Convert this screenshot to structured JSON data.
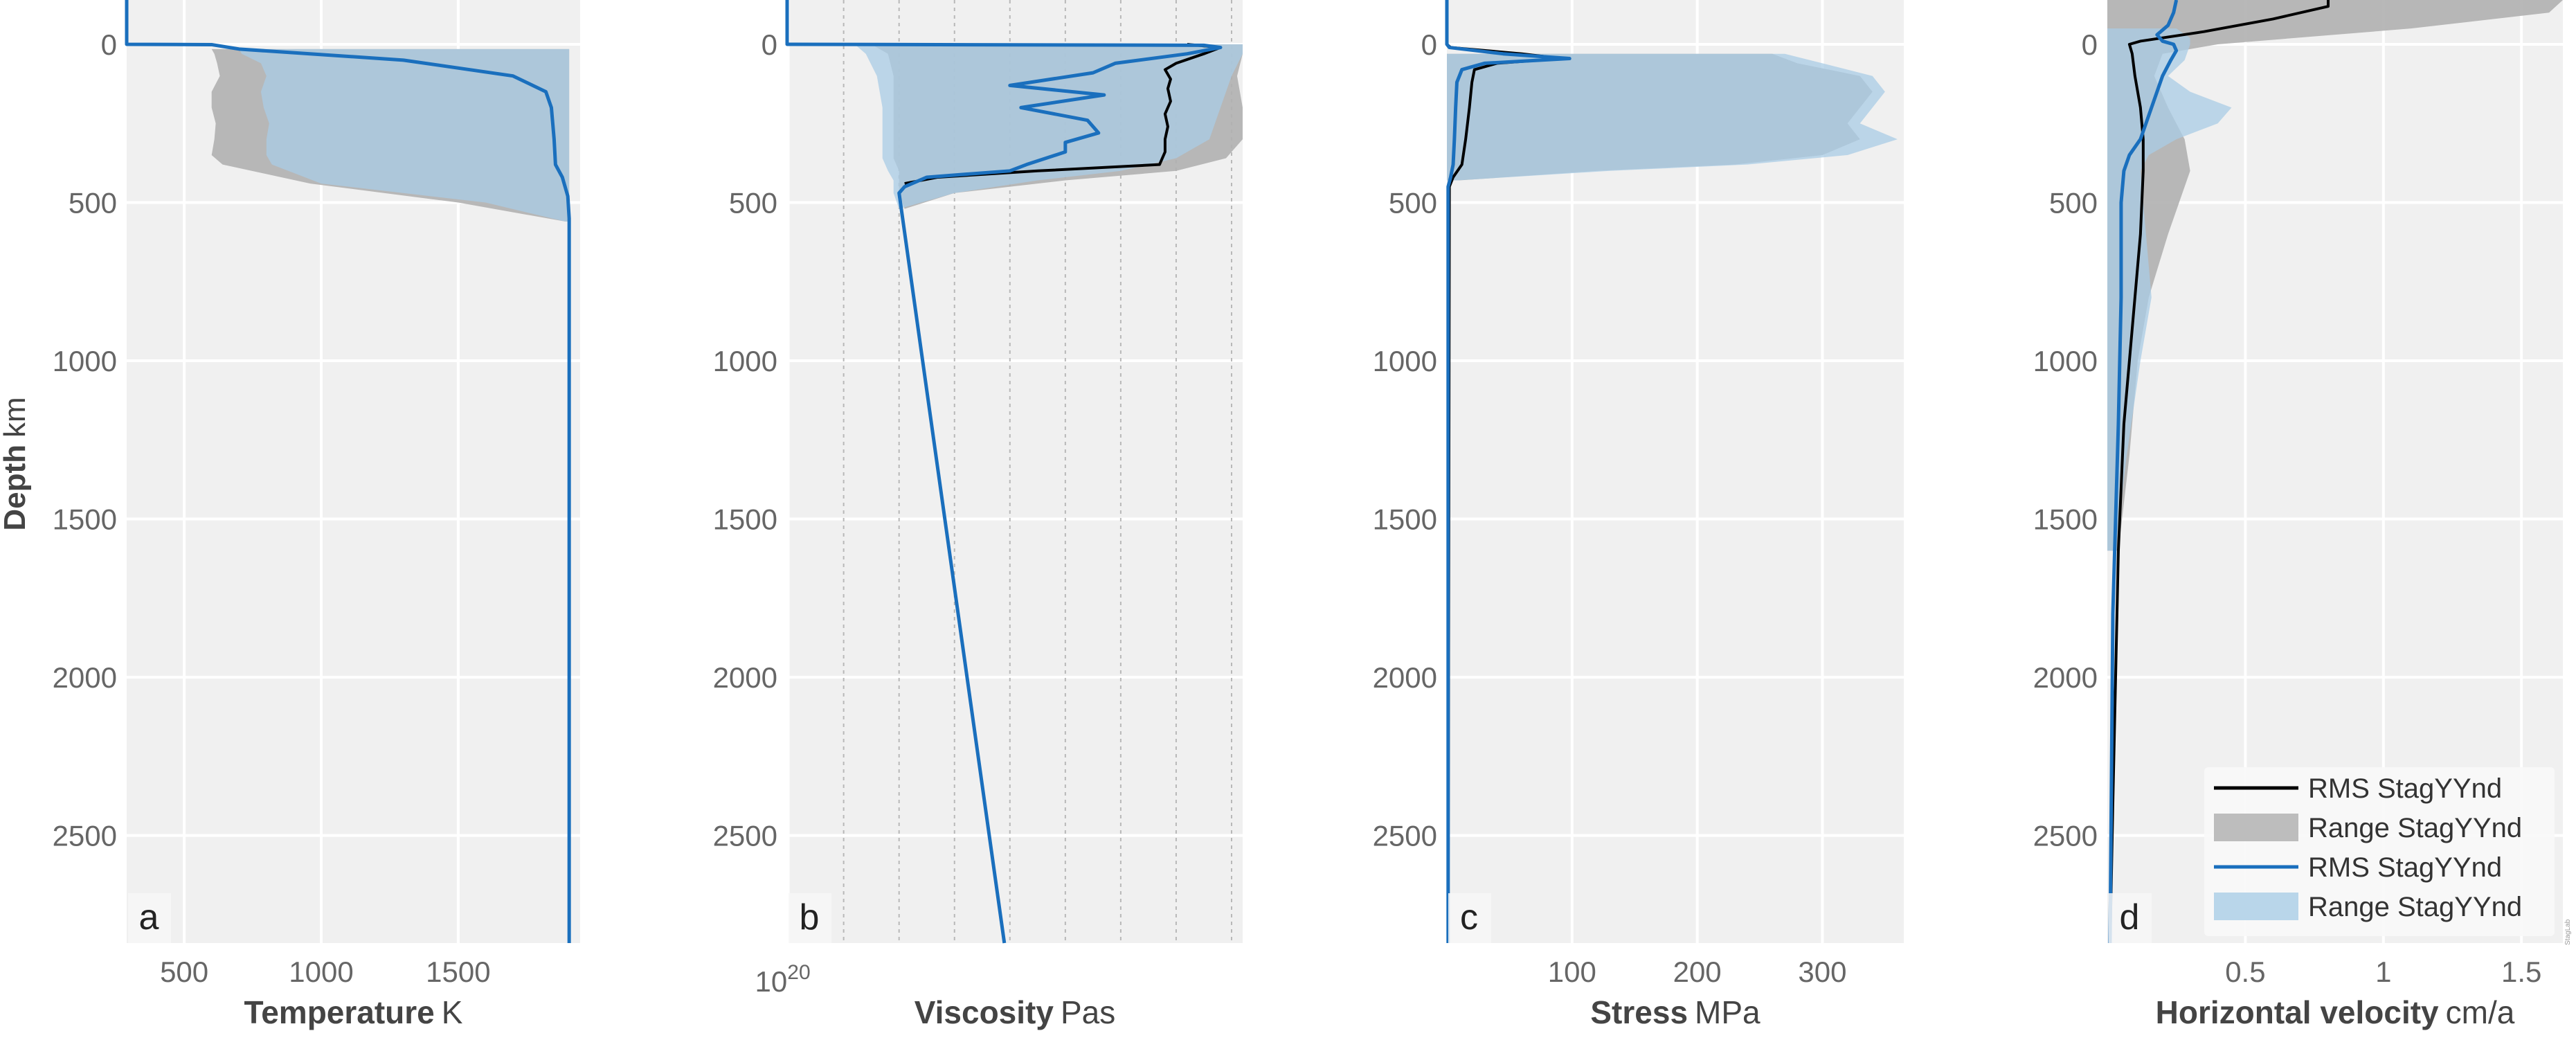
{
  "figure": {
    "ylabel_bold": "Depth",
    "ylabel_unit": "km",
    "credit": "StagLab"
  },
  "legend": {
    "placement": "lower-right of panel d",
    "entries": [
      {
        "label": "RMS StagYYnd",
        "kind": "line",
        "color": "#000000"
      },
      {
        "label": "Range StagYYnd",
        "kind": "band",
        "color": "#bdbdbd"
      },
      {
        "label": "RMS StagYYnd",
        "kind": "line",
        "color": "#1a6fbd"
      },
      {
        "label": "Range StagYYnd",
        "kind": "band",
        "color": "#b9d6ea"
      }
    ]
  },
  "colors": {
    "panel_bg": "#f0f0f0",
    "grid": "#ffffff",
    "series_a": "#000000",
    "series_b": "#1a6fbd",
    "band_a": "#b0b0b0",
    "band_b": "#a9cce6",
    "overlap": "#9fb6c6"
  },
  "chart_data": [
    {
      "panel": "a",
      "type": "line",
      "xlabel_bold": "Temperature",
      "xlabel_unit": "K",
      "xscale": "linear",
      "xlim": [
        290,
        1945
      ],
      "xticks": [
        500,
        1000,
        1500
      ],
      "ylim": [
        2840,
        -140
      ],
      "yticks": [
        0,
        500,
        1000,
        1500,
        2000,
        2500
      ],
      "grid": true,
      "series": [
        {
          "name": "RMS StagYYnd",
          "color": "#000000",
          "depth": [
            -140,
            0,
            1,
            15,
            50,
            100,
            150,
            200,
            300,
            380,
            420,
            480,
            550,
            2840
          ],
          "x": [
            290,
            290,
            600,
            700,
            1300,
            1700,
            1820,
            1840,
            1850,
            1855,
            1880,
            1900,
            1905,
            1905
          ]
        },
        {
          "name": "RMS StagYYnd",
          "color": "#1a6fbd",
          "depth": [
            -140,
            0,
            1,
            15,
            50,
            100,
            150,
            200,
            300,
            380,
            420,
            480,
            550,
            2840
          ],
          "x": [
            290,
            290,
            600,
            700,
            1300,
            1700,
            1820,
            1840,
            1850,
            1855,
            1880,
            1900,
            1905,
            1905
          ]
        }
      ],
      "bands": [
        {
          "name": "Range StagYYnd",
          "color": "#b0b0b0",
          "depth": [
            15,
            30,
            60,
            100,
            150,
            200,
            250,
            300,
            350,
            380,
            440,
            500,
            560
          ],
          "lo": [
            600,
            610,
            620,
            630,
            600,
            600,
            615,
            610,
            600,
            640,
            960,
            1500,
            1890
          ],
          "hi": [
            1905,
            1905,
            1905,
            1905,
            1905,
            1905,
            1905,
            1905,
            1905,
            1905,
            1905,
            1905,
            1905
          ]
        },
        {
          "name": "Range StagYYnd",
          "color": "#a9cce6",
          "depth": [
            15,
            30,
            60,
            100,
            150,
            200,
            250,
            300,
            350,
            380,
            440,
            500,
            560
          ],
          "lo": [
            700,
            710,
            780,
            800,
            780,
            790,
            810,
            800,
            800,
            820,
            1000,
            1600,
            1890
          ],
          "hi": [
            1905,
            1905,
            1905,
            1905,
            1905,
            1905,
            1905,
            1905,
            1905,
            1905,
            1905,
            1905,
            1905
          ]
        }
      ]
    },
    {
      "panel": "b",
      "type": "line",
      "xlabel_bold": "Viscosity",
      "xlabel_unit": "Pas",
      "xscale": "log",
      "xlim": [
        19.98,
        28.2
      ],
      "xticks": [
        20
      ],
      "xtick_labels": [
        "10",
        "20"
      ],
      "minor_gridlines_log": [
        21,
        22,
        23,
        24,
        25,
        26,
        27,
        28
      ],
      "ylim": [
        2840,
        -140
      ],
      "yticks": [
        0,
        500,
        1000,
        1500,
        2000,
        2500
      ],
      "grid": true,
      "series": [
        {
          "name": "RMS StagYYnd",
          "color": "#000000",
          "depth": [
            0,
            10,
            30,
            60,
            80,
            110,
            140,
            180,
            220,
            260,
            300,
            340,
            380,
            400,
            420,
            440
          ],
          "log10_x": [
            27.2,
            27.8,
            27.5,
            27.0,
            26.8,
            26.9,
            26.85,
            26.9,
            26.8,
            26.85,
            26.8,
            26.8,
            26.7,
            24.5,
            22.7,
            22.1
          ]
        },
        {
          "name": "RMS StagYYnd",
          "color": "#1a6fbd",
          "depth": [
            -140,
            0,
            3,
            10,
            30,
            60,
            90,
            130,
            160,
            200,
            240,
            280,
            310,
            340,
            380,
            400,
            420,
            450,
            470,
            2840
          ],
          "log10_x": [
            19.98,
            19.98,
            27.5,
            27.8,
            27.2,
            25.9,
            25.5,
            24.0,
            25.7,
            24.2,
            25.4,
            25.6,
            25.0,
            25.0,
            24.3,
            24.0,
            22.5,
            22.1,
            22.0,
            23.9
          ]
        }
      ],
      "bands": [
        {
          "name": "Range StagYYnd",
          "color": "#b0b0b0",
          "depth": [
            0,
            30,
            100,
            200,
            300,
            360,
            400,
            430,
            470,
            520
          ],
          "lo": [
            21.5,
            21.8,
            21.9,
            21.9,
            21.9,
            21.9,
            22.0,
            22.0,
            22.0,
            22.1
          ],
          "hi": [
            28.2,
            28.2,
            28.1,
            28.2,
            28.2,
            27.9,
            27.0,
            25.0,
            23.0,
            22.1
          ]
        },
        {
          "name": "Range StagYYnd",
          "color": "#a9cce6",
          "depth": [
            0,
            30,
            100,
            200,
            300,
            360,
            400,
            430,
            470,
            520
          ],
          "lo": [
            21.2,
            21.4,
            21.6,
            21.7,
            21.7,
            21.7,
            21.8,
            21.9,
            21.9,
            22.0
          ],
          "hi": [
            28.2,
            28.2,
            28.0,
            27.8,
            27.6,
            27.0,
            26.0,
            24.5,
            23.0,
            22.0
          ]
        }
      ]
    },
    {
      "panel": "c",
      "type": "line",
      "xlabel_bold": "Stress",
      "xlabel_unit": "MPa",
      "xscale": "linear",
      "xlim": [
        0,
        365
      ],
      "xticks": [
        100,
        200,
        300
      ],
      "ylim": [
        2840,
        -140
      ],
      "yticks": [
        0,
        500,
        1000,
        1500,
        2000,
        2500
      ],
      "grid": true,
      "series": [
        {
          "name": "RMS StagYYnd",
          "color": "#000000",
          "depth": [
            -140,
            0,
            10,
            30,
            45,
            60,
            80,
            120,
            200,
            300,
            380,
            420,
            450,
            2840
          ],
          "x": [
            0,
            0,
            3,
            60,
            92,
            40,
            22,
            20,
            18,
            15,
            12,
            5,
            2,
            1
          ]
        },
        {
          "name": "RMS StagYYnd",
          "color": "#1a6fbd",
          "depth": [
            -140,
            0,
            10,
            30,
            45,
            60,
            80,
            120,
            200,
            300,
            380,
            420,
            450,
            2840
          ],
          "x": [
            0,
            0,
            2,
            45,
            98,
            30,
            12,
            8,
            7,
            6,
            5,
            3,
            1,
            1
          ]
        }
      ],
      "bands": [
        {
          "name": "Range StagYYnd",
          "color": "#b0b0b0",
          "depth": [
            30,
            60,
            100,
            150,
            200,
            250,
            300,
            350,
            380,
            400,
            430
          ],
          "lo": [
            0,
            0,
            0,
            0,
            0,
            0,
            0,
            0,
            0,
            0,
            0
          ],
          "hi": [
            260,
            280,
            330,
            340,
            330,
            320,
            330,
            300,
            230,
            120,
            10
          ]
        },
        {
          "name": "Range StagYYnd",
          "color": "#a9cce6",
          "depth": [
            30,
            60,
            100,
            150,
            200,
            250,
            300,
            350,
            380,
            400,
            430
          ],
          "lo": [
            0,
            0,
            0,
            0,
            0,
            0,
            0,
            0,
            0,
            0,
            0
          ],
          "hi": [
            270,
            300,
            340,
            350,
            340,
            330,
            360,
            320,
            240,
            130,
            8
          ]
        }
      ]
    },
    {
      "panel": "d",
      "type": "line",
      "xlabel_bold": "Horizontal velocity",
      "xlabel_unit": "cm/a",
      "xscale": "linear",
      "xlim": [
        0,
        1.65
      ],
      "xticks": [
        0.5,
        1,
        1.5
      ],
      "ylim": [
        2840,
        -140
      ],
      "yticks": [
        0,
        500,
        1000,
        1500,
        2000,
        2500
      ],
      "grid": true,
      "series": [
        {
          "name": "RMS StagYYnd",
          "color": "#000000",
          "depth": [
            -140,
            -120,
            -80,
            -40,
            -10,
            0,
            30,
            100,
            200,
            300,
            400,
            600,
            800,
            1200,
            1600,
            2000,
            2400,
            2840
          ],
          "x": [
            0.8,
            0.8,
            0.6,
            0.35,
            0.12,
            0.08,
            0.09,
            0.1,
            0.12,
            0.13,
            0.13,
            0.12,
            0.1,
            0.06,
            0.04,
            0.03,
            0.02,
            0.01
          ]
        },
        {
          "name": "RMS StagYYnd",
          "color": "#1a6fbd",
          "depth": [
            -140,
            -100,
            -60,
            -30,
            -10,
            0,
            20,
            50,
            100,
            200,
            300,
            350,
            400,
            500,
            800,
            1200,
            1800,
            2840
          ],
          "x": [
            0.25,
            0.24,
            0.22,
            0.18,
            0.2,
            0.24,
            0.25,
            0.23,
            0.2,
            0.16,
            0.12,
            0.08,
            0.06,
            0.05,
            0.05,
            0.04,
            0.02,
            0.01
          ]
        }
      ],
      "bands": [
        {
          "name": "Range StagYYnd",
          "color": "#b0b0b0",
          "depth": [
            -140,
            -100,
            -50,
            0,
            30,
            100,
            200,
            300,
            400,
            600,
            800,
            1000,
            1300,
            1600
          ],
          "lo": [
            0.0,
            0.0,
            0.0,
            0.0,
            0.0,
            0.0,
            0.0,
            0.0,
            0.0,
            0.0,
            0.0,
            0.0,
            0.0,
            0.0
          ],
          "hi": [
            1.65,
            1.6,
            1.1,
            0.4,
            0.2,
            0.17,
            0.22,
            0.28,
            0.3,
            0.22,
            0.15,
            0.11,
            0.08,
            0.04
          ]
        },
        {
          "name": "Range StagYYnd",
          "color": "#a9cce6",
          "depth": [
            -50,
            -20,
            0,
            50,
            100,
            150,
            200,
            250,
            300,
            350,
            400,
            600,
            800,
            1000,
            1300,
            1600
          ],
          "lo": [
            0.0,
            0.0,
            0.0,
            0.0,
            0.0,
            0.0,
            0.0,
            0.0,
            0.0,
            0.0,
            0.0,
            0.0,
            0.0,
            0.0,
            0.0,
            0.0
          ],
          "hi": [
            0.25,
            0.3,
            0.3,
            0.28,
            0.22,
            0.3,
            0.45,
            0.4,
            0.25,
            0.15,
            0.12,
            0.14,
            0.16,
            0.12,
            0.07,
            0.03
          ]
        }
      ]
    }
  ]
}
